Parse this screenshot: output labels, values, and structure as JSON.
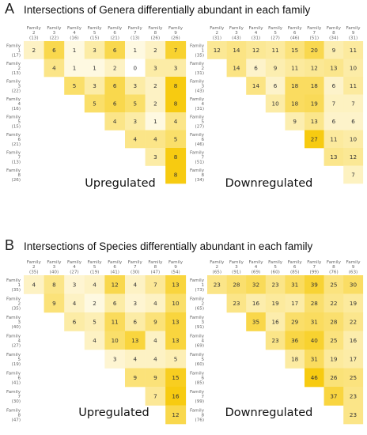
{
  "panels": [
    {
      "letter": "A",
      "title": "Intersections of Genera differentially abundant in each family"
    },
    {
      "letter": "B",
      "title": "Intersections of Species differentially abundant in each family"
    }
  ],
  "chart_data": [
    {
      "type": "heatmap",
      "title": "Upregulated",
      "columns": [
        {
          "name": "Family 2",
          "count": "(13)"
        },
        {
          "name": "Family 3",
          "count": "(22)"
        },
        {
          "name": "Family 4",
          "count": "(16)"
        },
        {
          "name": "Family 5",
          "count": "(15)"
        },
        {
          "name": "Family 6",
          "count": "(21)"
        },
        {
          "name": "Family 7",
          "count": "(13)"
        },
        {
          "name": "Family 8",
          "count": "(26)"
        },
        {
          "name": "Family 9",
          "count": "(26)"
        }
      ],
      "rows": [
        {
          "name": "Family 1",
          "count": "(17)"
        },
        {
          "name": "Family 2",
          "count": "(13)"
        },
        {
          "name": "Family 3",
          "count": "(22)"
        },
        {
          "name": "Family 4",
          "count": "(16)"
        },
        {
          "name": "Family 5",
          "count": "(15)"
        },
        {
          "name": "Family 6",
          "count": "(21)"
        },
        {
          "name": "Family 7",
          "count": "(13)"
        },
        {
          "name": "Family 8",
          "count": "(26)"
        }
      ],
      "values": [
        [
          2,
          6,
          1,
          3,
          6,
          1,
          2,
          7
        ],
        [
          null,
          4,
          1,
          1,
          2,
          0,
          3,
          3
        ],
        [
          null,
          null,
          5,
          3,
          6,
          3,
          2,
          8
        ],
        [
          null,
          null,
          null,
          5,
          6,
          5,
          2,
          8
        ],
        [
          null,
          null,
          null,
          null,
          4,
          3,
          1,
          4
        ],
        [
          null,
          null,
          null,
          null,
          null,
          4,
          4,
          5
        ],
        [
          null,
          null,
          null,
          null,
          null,
          null,
          3,
          8
        ],
        [
          null,
          null,
          null,
          null,
          null,
          null,
          null,
          8
        ]
      ]
    },
    {
      "type": "heatmap",
      "title": "Downregulated",
      "columns": [
        {
          "name": "Family 2",
          "count": "(31)"
        },
        {
          "name": "Family 3",
          "count": "(43)"
        },
        {
          "name": "Family 4",
          "count": "(31)"
        },
        {
          "name": "Family 5",
          "count": "(27)"
        },
        {
          "name": "Family 6",
          "count": "(46)"
        },
        {
          "name": "Family 7",
          "count": "(51)"
        },
        {
          "name": "Family 8",
          "count": "(34)"
        },
        {
          "name": "Family 9",
          "count": "(31)"
        }
      ],
      "rows": [
        {
          "name": "Family 1",
          "count": "(35)"
        },
        {
          "name": "Family 2",
          "count": "(31)"
        },
        {
          "name": "Family 3",
          "count": "(43)"
        },
        {
          "name": "Family 4",
          "count": "(31)"
        },
        {
          "name": "Family 5",
          "count": "(27)"
        },
        {
          "name": "Family 6",
          "count": "(46)"
        },
        {
          "name": "Family 7",
          "count": "(51)"
        },
        {
          "name": "Family 8",
          "count": "(34)"
        }
      ],
      "values": [
        [
          12,
          14,
          12,
          11,
          15,
          20,
          9,
          11
        ],
        [
          null,
          14,
          6,
          9,
          11,
          12,
          13,
          10
        ],
        [
          null,
          null,
          14,
          6,
          18,
          18,
          6,
          11
        ],
        [
          null,
          null,
          null,
          10,
          18,
          19,
          7,
          7
        ],
        [
          null,
          null,
          null,
          null,
          9,
          13,
          6,
          6
        ],
        [
          null,
          null,
          null,
          null,
          null,
          27,
          11,
          10
        ],
        [
          null,
          null,
          null,
          null,
          null,
          null,
          13,
          12
        ],
        [
          null,
          null,
          null,
          null,
          null,
          null,
          null,
          7
        ]
      ]
    },
    {
      "type": "heatmap",
      "title": "Upregulated",
      "columns": [
        {
          "name": "Family 2",
          "count": "(35)"
        },
        {
          "name": "Family 3",
          "count": "(40)"
        },
        {
          "name": "Family 4",
          "count": "(27)"
        },
        {
          "name": "Family 5",
          "count": "(19)"
        },
        {
          "name": "Family 6",
          "count": "(41)"
        },
        {
          "name": "Family 7",
          "count": "(30)"
        },
        {
          "name": "Family 8",
          "count": "(47)"
        },
        {
          "name": "Family 9",
          "count": "(54)"
        }
      ],
      "rows": [
        {
          "name": "Family 1",
          "count": "(35)"
        },
        {
          "name": "Family 2",
          "count": "(35)"
        },
        {
          "name": "Family 3",
          "count": "(40)"
        },
        {
          "name": "Family 4",
          "count": "(27)"
        },
        {
          "name": "Family 5",
          "count": "(19)"
        },
        {
          "name": "Family 6",
          "count": "(41)"
        },
        {
          "name": "Family 7",
          "count": "(30)"
        },
        {
          "name": "Family 8",
          "count": "(47)"
        }
      ],
      "values": [
        [
          4,
          8,
          3,
          4,
          12,
          4,
          7,
          13
        ],
        [
          null,
          9,
          4,
          2,
          6,
          3,
          4,
          10
        ],
        [
          null,
          null,
          6,
          5,
          11,
          6,
          9,
          13
        ],
        [
          null,
          null,
          null,
          4,
          10,
          13,
          4,
          13
        ],
        [
          null,
          null,
          null,
          null,
          3,
          4,
          4,
          5
        ],
        [
          null,
          null,
          null,
          null,
          null,
          9,
          9,
          15
        ],
        [
          null,
          null,
          null,
          null,
          null,
          null,
          7,
          16
        ],
        [
          null,
          null,
          null,
          null,
          null,
          null,
          null,
          12
        ]
      ]
    },
    {
      "type": "heatmap",
      "title": "Downregulated",
      "columns": [
        {
          "name": "Family 2",
          "count": "(65)"
        },
        {
          "name": "Family 3",
          "count": "(91)"
        },
        {
          "name": "Family 4",
          "count": "(69)"
        },
        {
          "name": "Family 5",
          "count": "(60)"
        },
        {
          "name": "Family 6",
          "count": "(85)"
        },
        {
          "name": "Family 7",
          "count": "(99)"
        },
        {
          "name": "Family 8",
          "count": "(76)"
        },
        {
          "name": "Family 9",
          "count": "(63)"
        }
      ],
      "rows": [
        {
          "name": "Family 1",
          "count": "(73)"
        },
        {
          "name": "Family 2",
          "count": "(65)"
        },
        {
          "name": "Family 3",
          "count": "(91)"
        },
        {
          "name": "Family 4",
          "count": "(69)"
        },
        {
          "name": "Family 5",
          "count": "(60)"
        },
        {
          "name": "Family 6",
          "count": "(85)"
        },
        {
          "name": "Family 7",
          "count": "(99)"
        },
        {
          "name": "Family 8",
          "count": "(76)"
        }
      ],
      "values": [
        [
          23,
          28,
          32,
          23,
          31,
          39,
          25,
          30
        ],
        [
          null,
          23,
          16,
          19,
          17,
          28,
          22,
          19
        ],
        [
          null,
          null,
          35,
          16,
          29,
          31,
          28,
          22
        ],
        [
          null,
          null,
          null,
          23,
          36,
          40,
          25,
          16
        ],
        [
          null,
          null,
          null,
          null,
          18,
          31,
          19,
          17
        ],
        [
          null,
          null,
          null,
          null,
          null,
          46,
          26,
          25
        ],
        [
          null,
          null,
          null,
          null,
          null,
          null,
          37,
          23
        ],
        [
          null,
          null,
          null,
          null,
          null,
          null,
          null,
          23
        ]
      ]
    }
  ]
}
